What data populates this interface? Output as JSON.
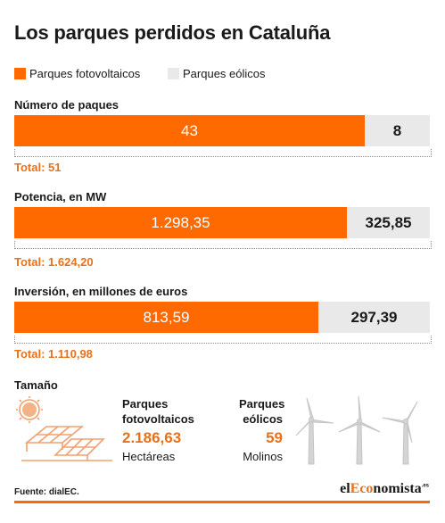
{
  "title": "Los parques perdidos en Cataluña",
  "legend": [
    {
      "label": "Parques fotovoltaicos",
      "color": "#ff6a00"
    },
    {
      "label": "Parques eólicos",
      "color": "#e9e9e9"
    }
  ],
  "chart_data": {
    "type": "bar",
    "stacked": true,
    "orientation": "horizontal",
    "series_names": [
      "Parques fotovoltaicos",
      "Parques eólicos"
    ],
    "groups": [
      {
        "label": "Número de paques",
        "values": [
          43,
          8
        ],
        "value_labels": [
          "43",
          "8"
        ],
        "total_label": "Total: 51"
      },
      {
        "label": "Potencia, en MW",
        "values": [
          1298.35,
          325.85
        ],
        "value_labels": [
          "1.298,35",
          "325,85"
        ],
        "total_label": "Total: 1.624,20"
      },
      {
        "label": "Inversión, en millones de euros",
        "values": [
          813.59,
          297.39
        ],
        "value_labels": [
          "813,59",
          "297,39"
        ],
        "total_label": "Total: 1.110,98"
      }
    ]
  },
  "size": {
    "title": "Tamaño",
    "solar": {
      "label_line1": "Parques",
      "label_line2": "fotovoltaicos",
      "value": "2.186,63",
      "unit": "Hectáreas"
    },
    "wind": {
      "label_line1": "Parques",
      "label_line2": "eólicos",
      "value": "59",
      "unit": "Molinos"
    }
  },
  "footer": {
    "source": "Fuente: dialEC.",
    "logo_prefix": "el",
    "logo_accent": "Eco",
    "logo_suffix": "nomista",
    "logo_tld": ".es"
  }
}
